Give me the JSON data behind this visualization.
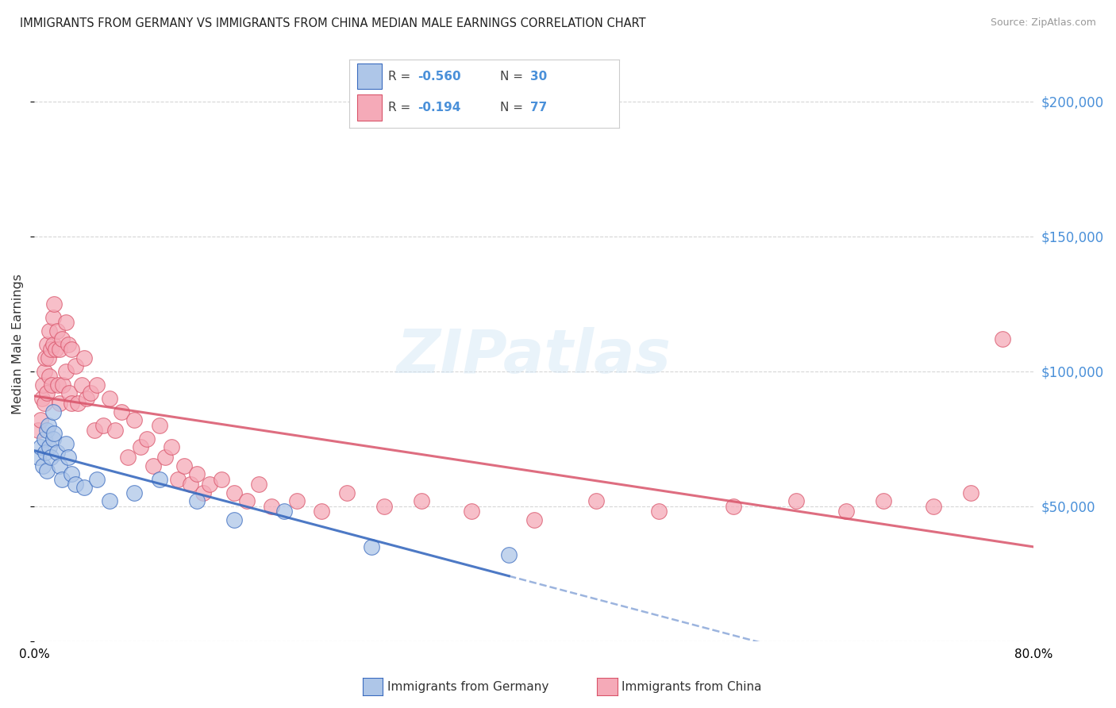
{
  "title": "IMMIGRANTS FROM GERMANY VS IMMIGRANTS FROM CHINA MEDIAN MALE EARNINGS CORRELATION CHART",
  "source": "Source: ZipAtlas.com",
  "ylabel": "Median Male Earnings",
  "xlim": [
    0.0,
    0.8
  ],
  "ylim": [
    0,
    220000
  ],
  "yticks": [
    0,
    50000,
    100000,
    150000,
    200000
  ],
  "ytick_labels": [
    "",
    "$50,000",
    "$100,000",
    "$150,000",
    "$200,000"
  ],
  "germany_color": "#aec6e8",
  "germany_line_color": "#3a6bbf",
  "china_color": "#f5aab8",
  "china_line_color": "#d9546a",
  "germany_R": "-0.560",
  "germany_N": "30",
  "china_R": "-0.194",
  "china_N": "77",
  "watermark": "ZIPatlas",
  "germany_x": [
    0.003,
    0.005,
    0.007,
    0.008,
    0.009,
    0.01,
    0.01,
    0.011,
    0.012,
    0.013,
    0.015,
    0.015,
    0.016,
    0.018,
    0.02,
    0.022,
    0.025,
    0.027,
    0.03,
    0.033,
    0.04,
    0.05,
    0.06,
    0.08,
    0.1,
    0.13,
    0.16,
    0.2,
    0.27,
    0.38
  ],
  "germany_y": [
    68000,
    72000,
    65000,
    75000,
    70000,
    78000,
    63000,
    80000,
    72000,
    68000,
    75000,
    85000,
    77000,
    70000,
    65000,
    60000,
    73000,
    68000,
    62000,
    58000,
    57000,
    60000,
    52000,
    55000,
    60000,
    52000,
    45000,
    48000,
    35000,
    32000
  ],
  "china_x": [
    0.003,
    0.005,
    0.006,
    0.007,
    0.008,
    0.008,
    0.009,
    0.01,
    0.01,
    0.011,
    0.012,
    0.012,
    0.013,
    0.014,
    0.015,
    0.015,
    0.016,
    0.017,
    0.018,
    0.019,
    0.02,
    0.02,
    0.022,
    0.023,
    0.025,
    0.025,
    0.027,
    0.028,
    0.03,
    0.03,
    0.033,
    0.035,
    0.038,
    0.04,
    0.042,
    0.045,
    0.048,
    0.05,
    0.055,
    0.06,
    0.065,
    0.07,
    0.075,
    0.08,
    0.085,
    0.09,
    0.095,
    0.1,
    0.105,
    0.11,
    0.115,
    0.12,
    0.125,
    0.13,
    0.135,
    0.14,
    0.15,
    0.16,
    0.17,
    0.18,
    0.19,
    0.21,
    0.23,
    0.25,
    0.28,
    0.31,
    0.35,
    0.4,
    0.45,
    0.5,
    0.56,
    0.61,
    0.65,
    0.68,
    0.72,
    0.75,
    0.775
  ],
  "china_y": [
    78000,
    82000,
    90000,
    95000,
    100000,
    88000,
    105000,
    110000,
    92000,
    105000,
    115000,
    98000,
    108000,
    95000,
    120000,
    110000,
    125000,
    108000,
    115000,
    95000,
    108000,
    88000,
    112000,
    95000,
    118000,
    100000,
    110000,
    92000,
    108000,
    88000,
    102000,
    88000,
    95000,
    105000,
    90000,
    92000,
    78000,
    95000,
    80000,
    90000,
    78000,
    85000,
    68000,
    82000,
    72000,
    75000,
    65000,
    80000,
    68000,
    72000,
    60000,
    65000,
    58000,
    62000,
    55000,
    58000,
    60000,
    55000,
    52000,
    58000,
    50000,
    52000,
    48000,
    55000,
    50000,
    52000,
    48000,
    45000,
    52000,
    48000,
    50000,
    52000,
    48000,
    52000,
    50000,
    55000,
    112000
  ]
}
